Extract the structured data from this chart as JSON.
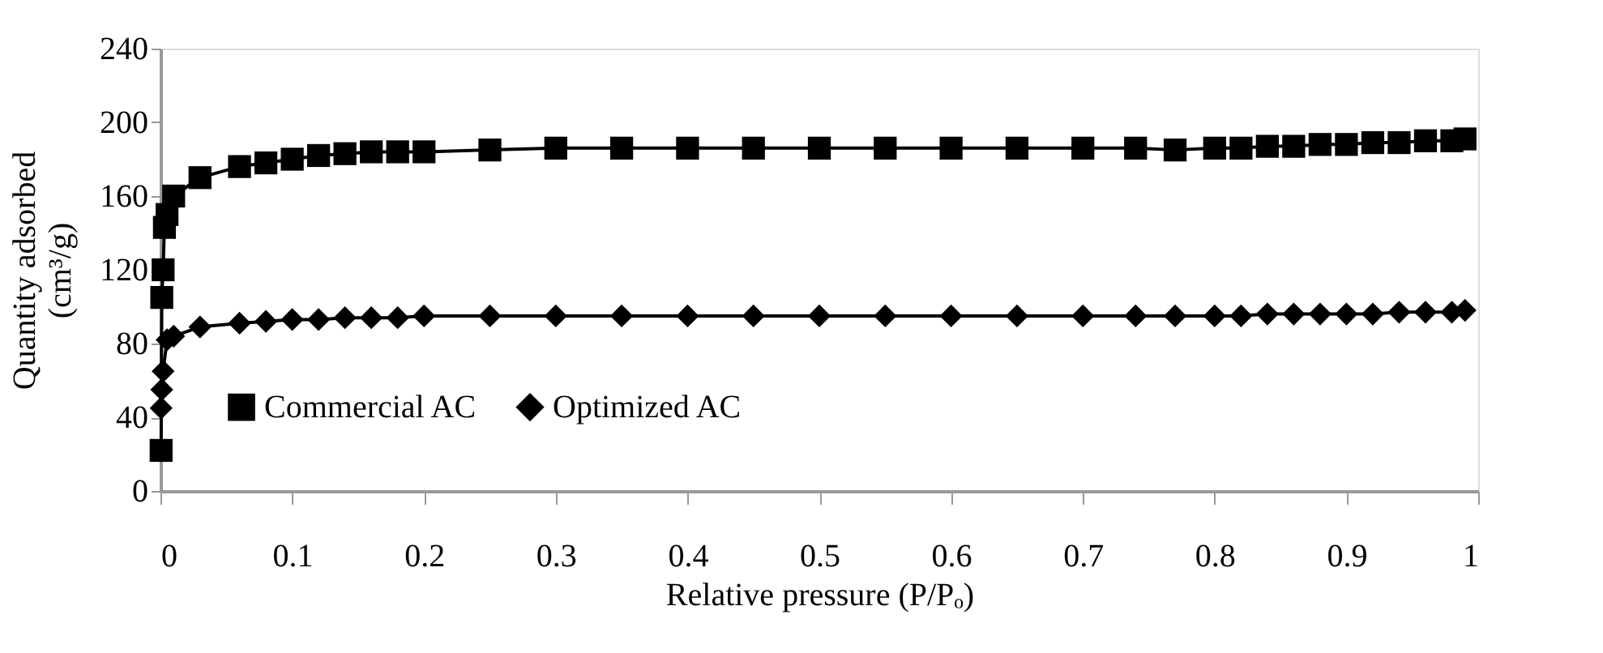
{
  "chart_data": {
    "type": "line",
    "xlabel": "Relative pressure (P/Pₒ)",
    "ylabel": "Quantity adsorbed\n(cm³/g)",
    "xlim": [
      0,
      1
    ],
    "xticks": [
      0,
      0.1,
      0.2,
      0.3,
      0.4,
      0.5,
      0.6,
      0.7,
      0.8,
      0.9,
      1
    ],
    "ylim": [
      0,
      240
    ],
    "yticks": [
      0,
      40,
      80,
      120,
      160,
      200,
      240
    ],
    "grid": false,
    "legend": "bottom left",
    "line_style": "solid",
    "series": [
      {
        "name": "Commercial AC",
        "color": "#000000",
        "marker": "square",
        "x": [
          0.0005,
          0.001,
          0.002,
          0.003,
          0.005,
          0.01,
          0.03,
          0.06,
          0.08,
          0.1,
          0.12,
          0.14,
          0.16,
          0.18,
          0.2,
          0.25,
          0.3,
          0.35,
          0.4,
          0.45,
          0.5,
          0.55,
          0.6,
          0.65,
          0.7,
          0.74,
          0.77,
          0.8,
          0.82,
          0.84,
          0.86,
          0.88,
          0.9,
          0.92,
          0.94,
          0.96,
          0.98,
          0.99
        ],
        "values": [
          22,
          105,
          120,
          143,
          150,
          160,
          170,
          176,
          178,
          180,
          182,
          183,
          184,
          184,
          184,
          185,
          186,
          186,
          186,
          186,
          186,
          186,
          186,
          186,
          186,
          186,
          185,
          186,
          186,
          187,
          187,
          188,
          188,
          189,
          189,
          190,
          190,
          191
        ]
      },
      {
        "name": "Optimized AC",
        "color": "#000000",
        "marker": "diamond",
        "x": [
          0.0005,
          0.001,
          0.002,
          0.003,
          0.005,
          0.01,
          0.03,
          0.06,
          0.08,
          0.1,
          0.12,
          0.14,
          0.16,
          0.18,
          0.2,
          0.25,
          0.3,
          0.35,
          0.4,
          0.45,
          0.5,
          0.55,
          0.6,
          0.65,
          0.7,
          0.74,
          0.77,
          0.8,
          0.82,
          0.84,
          0.86,
          0.88,
          0.9,
          0.92,
          0.94,
          0.96,
          0.98,
          0.99
        ],
        "values": [
          45,
          55,
          65,
          null,
          82,
          84,
          89,
          91,
          92,
          93,
          93,
          94,
          94,
          94,
          95,
          95,
          95,
          95,
          95,
          95,
          95,
          95,
          95,
          95,
          95,
          95,
          95,
          95,
          95,
          96,
          96,
          96,
          96,
          96,
          97,
          97,
          97,
          98
        ]
      }
    ]
  }
}
